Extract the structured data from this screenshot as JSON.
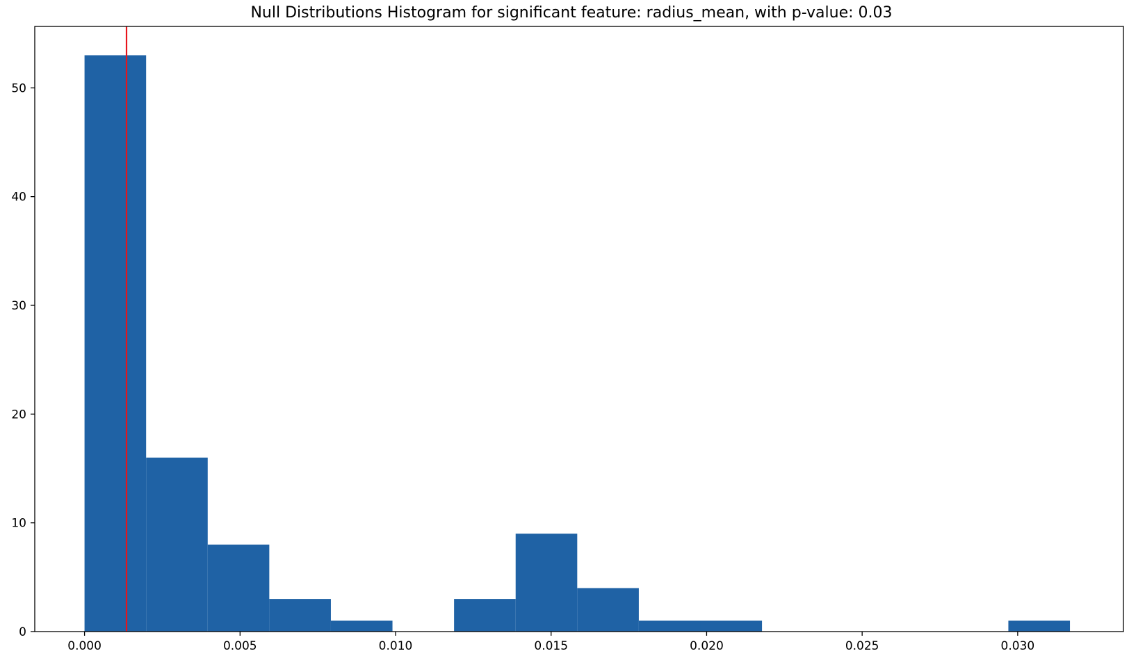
{
  "chart_data": {
    "type": "bar",
    "title": "Null Distributions Histogram for significant feature: radius_mean, with p-value: 0.03",
    "xlabel": "",
    "ylabel": "",
    "xlim": [
      -0.0016,
      0.0334
    ],
    "ylim": [
      0,
      55.65
    ],
    "x_ticks": [
      {
        "value": 0.0,
        "label": "0.000"
      },
      {
        "value": 0.005,
        "label": "0.005"
      },
      {
        "value": 0.01,
        "label": "0.010"
      },
      {
        "value": 0.015,
        "label": "0.015"
      },
      {
        "value": 0.02,
        "label": "0.020"
      },
      {
        "value": 0.025,
        "label": "0.025"
      },
      {
        "value": 0.03,
        "label": "0.030"
      }
    ],
    "y_ticks": [
      {
        "value": 0,
        "label": "0"
      },
      {
        "value": 10,
        "label": "10"
      },
      {
        "value": 20,
        "label": "20"
      },
      {
        "value": 30,
        "label": "30"
      },
      {
        "value": 40,
        "label": "40"
      },
      {
        "value": 50,
        "label": "50"
      }
    ],
    "bins": [
      {
        "start": 0.0,
        "end": 0.00198,
        "count": 53
      },
      {
        "start": 0.00198,
        "end": 0.00396,
        "count": 16
      },
      {
        "start": 0.00396,
        "end": 0.00594,
        "count": 8
      },
      {
        "start": 0.00594,
        "end": 0.00792,
        "count": 3
      },
      {
        "start": 0.00792,
        "end": 0.0099,
        "count": 1
      },
      {
        "start": 0.0099,
        "end": 0.01188,
        "count": 0
      },
      {
        "start": 0.01188,
        "end": 0.01386,
        "count": 3
      },
      {
        "start": 0.01386,
        "end": 0.01584,
        "count": 9
      },
      {
        "start": 0.01584,
        "end": 0.01782,
        "count": 4
      },
      {
        "start": 0.01782,
        "end": 0.0198,
        "count": 1
      },
      {
        "start": 0.0198,
        "end": 0.02178,
        "count": 1
      },
      {
        "start": 0.02178,
        "end": 0.02376,
        "count": 0
      },
      {
        "start": 0.02376,
        "end": 0.02574,
        "count": 0
      },
      {
        "start": 0.02574,
        "end": 0.02772,
        "count": 0
      },
      {
        "start": 0.02772,
        "end": 0.0297,
        "count": 0
      },
      {
        "start": 0.0297,
        "end": 0.03168,
        "count": 1
      }
    ],
    "reference_line": {
      "x": 0.00135,
      "color": "#e8141b"
    },
    "bar_color": "#1f62a5",
    "grid": false,
    "legend": false
  }
}
